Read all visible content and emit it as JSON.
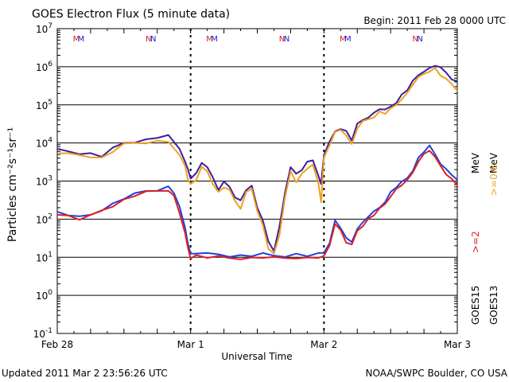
{
  "chart_data": {
    "type": "line",
    "title": "GOES Electron Flux (5 minute data)",
    "begin_label": "Begin: 2011 Feb 28 0000 UTC",
    "xlabel": "Universal Time",
    "ylabel": "Particles cm⁻²s⁻¹sr⁻¹",
    "y_scale": "log",
    "ylim": [
      0.1,
      10000000
    ],
    "y_ticks": [
      {
        "value": 0.1,
        "base": "10",
        "exp": "-1"
      },
      {
        "value": 1,
        "base": "10",
        "exp": "0"
      },
      {
        "value": 10,
        "base": "10",
        "exp": "1"
      },
      {
        "value": 100,
        "base": "10",
        "exp": "2"
      },
      {
        "value": 1000,
        "base": "10",
        "exp": "3"
      },
      {
        "value": 10000,
        "base": "10",
        "exp": "4"
      },
      {
        "value": 100000,
        "base": "10",
        "exp": "5"
      },
      {
        "value": 1000000,
        "base": "10",
        "exp": "6"
      },
      {
        "value": 10000000,
        "base": "10",
        "exp": "7"
      }
    ],
    "xlim": [
      0,
      72
    ],
    "x_unit": "hours since 2011 Feb 28 0000 UTC",
    "x_ticks": [
      {
        "value": 0,
        "label": "Feb 28"
      },
      {
        "value": 24,
        "label": "Mar 1"
      },
      {
        "value": 48,
        "label": "Mar 2"
      },
      {
        "value": 72,
        "label": "Mar 3"
      }
    ],
    "threshold_line": 1000,
    "markers": [
      {
        "x": 4,
        "label": "M",
        "colors": [
          "#d02020",
          "#2020d0"
        ]
      },
      {
        "x": 17,
        "label": "N",
        "colors": [
          "#d02020",
          "#2020d0"
        ]
      },
      {
        "x": 28,
        "label": "M",
        "colors": [
          "#d02020",
          "#2020d0"
        ]
      },
      {
        "x": 41,
        "label": "N",
        "colors": [
          "#d02020",
          "#2020d0"
        ]
      },
      {
        "x": 52,
        "label": "M",
        "colors": [
          "#d02020",
          "#2020d0"
        ]
      },
      {
        "x": 65,
        "label": "N",
        "colors": [
          "#d02020",
          "#2020d0"
        ]
      }
    ],
    "series": [
      {
        "name": ">=0.8 MeV",
        "satellite": "GOES15",
        "color": "#3b1fa0",
        "x": [
          0,
          2,
          4,
          6,
          8,
          10,
          12,
          14,
          16,
          18,
          20,
          22,
          23,
          23.5,
          24,
          25,
          26,
          27,
          28,
          29,
          30,
          31,
          32,
          33,
          34,
          35,
          36,
          37,
          38,
          39,
          40,
          41,
          42,
          43,
          44,
          45,
          46,
          47,
          47.5,
          48,
          49,
          50,
          51,
          52,
          53,
          54,
          55,
          56,
          57,
          58,
          59,
          60,
          61,
          62,
          63,
          64,
          65,
          66,
          67,
          68,
          69,
          70,
          71,
          72
        ],
        "values": [
          6500,
          6000,
          5500,
          5200,
          4500,
          7000,
          10000,
          11000,
          12000,
          14000,
          15000,
          7000,
          3500,
          2000,
          1200,
          1500,
          3000,
          2500,
          1200,
          600,
          900,
          700,
          400,
          300,
          600,
          700,
          200,
          100,
          25,
          15,
          60,
          500,
          2500,
          1500,
          2000,
          3000,
          3500,
          1500,
          800,
          5000,
          10000,
          20000,
          25000,
          20000,
          12000,
          30000,
          40000,
          50000,
          60000,
          80000,
          70000,
          90000,
          120000,
          180000,
          250000,
          400000,
          600000,
          800000,
          900000,
          1100000,
          900000,
          700000,
          500000,
          400000
        ]
      },
      {
        "name": ">=0.8 MeV",
        "satellite": "GOES13",
        "color": "#f0a020",
        "x": [
          0,
          2,
          4,
          6,
          8,
          10,
          12,
          14,
          16,
          18,
          20,
          22,
          23,
          23.5,
          24,
          25,
          26,
          27,
          28,
          29,
          30,
          31,
          32,
          33,
          34,
          35,
          36,
          37,
          38,
          39,
          40,
          41,
          42,
          43,
          44,
          45,
          46,
          47,
          47.5,
          48,
          49,
          50,
          51,
          52,
          53,
          54,
          55,
          56,
          57,
          58,
          59,
          60,
          61,
          62,
          63,
          64,
          65,
          66,
          67,
          68,
          69,
          70,
          71,
          72
        ],
        "values": [
          5500,
          5000,
          4800,
          4500,
          4000,
          6000,
          9000,
          10000,
          10500,
          11000,
          11000,
          4500,
          2500,
          1200,
          800,
          1100,
          2200,
          1800,
          900,
          500,
          700,
          550,
          300,
          200,
          500,
          650,
          150,
          70,
          18,
          12,
          40,
          350,
          1800,
          1000,
          1500,
          2200,
          2500,
          900,
          300,
          4000,
          9000,
          18000,
          22000,
          17000,
          9000,
          25000,
          35000,
          42000,
          50000,
          65000,
          60000,
          75000,
          100000,
          150000,
          200000,
          350000,
          500000,
          650000,
          800000,
          900000,
          600000,
          450000,
          350000,
          250000
        ]
      },
      {
        "name": ">=2 MeV",
        "satellite": "GOES15",
        "color": "#2040e0",
        "x": [
          0,
          2,
          4,
          6,
          8,
          10,
          12,
          14,
          16,
          18,
          20,
          21,
          22,
          23,
          23.5,
          24,
          25,
          27,
          29,
          31,
          33,
          35,
          37,
          39,
          41,
          43,
          45,
          47,
          48,
          49,
          50,
          51,
          52,
          53,
          54,
          55,
          56,
          57,
          58,
          59,
          60,
          61,
          62,
          63,
          64,
          65,
          66,
          67,
          68,
          69,
          70,
          71,
          72
        ],
        "values": [
          150,
          130,
          110,
          130,
          180,
          250,
          350,
          450,
          550,
          600,
          700,
          500,
          200,
          60,
          25,
          12,
          13,
          12,
          12,
          11,
          11,
          11,
          12,
          11,
          11,
          12,
          11,
          12,
          13,
          25,
          90,
          60,
          30,
          25,
          60,
          80,
          120,
          150,
          200,
          300,
          500,
          700,
          900,
          1200,
          2000,
          4000,
          6000,
          8000,
          5000,
          3000,
          2000,
          1500,
          1000
        ]
      },
      {
        "name": ">=2 MeV",
        "satellite": "GOES13",
        "color": "#e02020",
        "x": [
          0,
          2,
          4,
          6,
          8,
          10,
          12,
          14,
          16,
          18,
          20,
          21,
          22,
          23,
          23.5,
          24,
          25,
          27,
          29,
          31,
          33,
          35,
          37,
          39,
          41,
          43,
          45,
          47,
          48,
          49,
          50,
          51,
          52,
          53,
          54,
          55,
          56,
          57,
          58,
          59,
          60,
          61,
          62,
          63,
          64,
          65,
          66,
          67,
          68,
          69,
          70,
          71,
          72
        ],
        "values": [
          140,
          120,
          100,
          120,
          170,
          230,
          320,
          420,
          500,
          550,
          600,
          400,
          150,
          40,
          18,
          10,
          11,
          10,
          10,
          9.5,
          9.5,
          9.5,
          10,
          9.5,
          9.5,
          10,
          9.5,
          10,
          10,
          20,
          80,
          50,
          25,
          20,
          50,
          70,
          100,
          130,
          180,
          250,
          420,
          600,
          800,
          1000,
          1700,
          3500,
          5000,
          6500,
          4000,
          2500,
          1600,
          1100,
          800
        ]
      }
    ],
    "right_labels": {
      "mev_0_8": ">=0.8",
      "mev_2": ">=2",
      "mev_unit": "MeV",
      "goes15": "GOES15",
      "goes13": "GOES13",
      "color_0_8": "#f0a020",
      "color_2": "#e02020"
    },
    "footer_left": "Updated 2011 Mar  2 23:56:26 UTC",
    "footer_right": "NOAA/SWPC Boulder, CO USA"
  }
}
